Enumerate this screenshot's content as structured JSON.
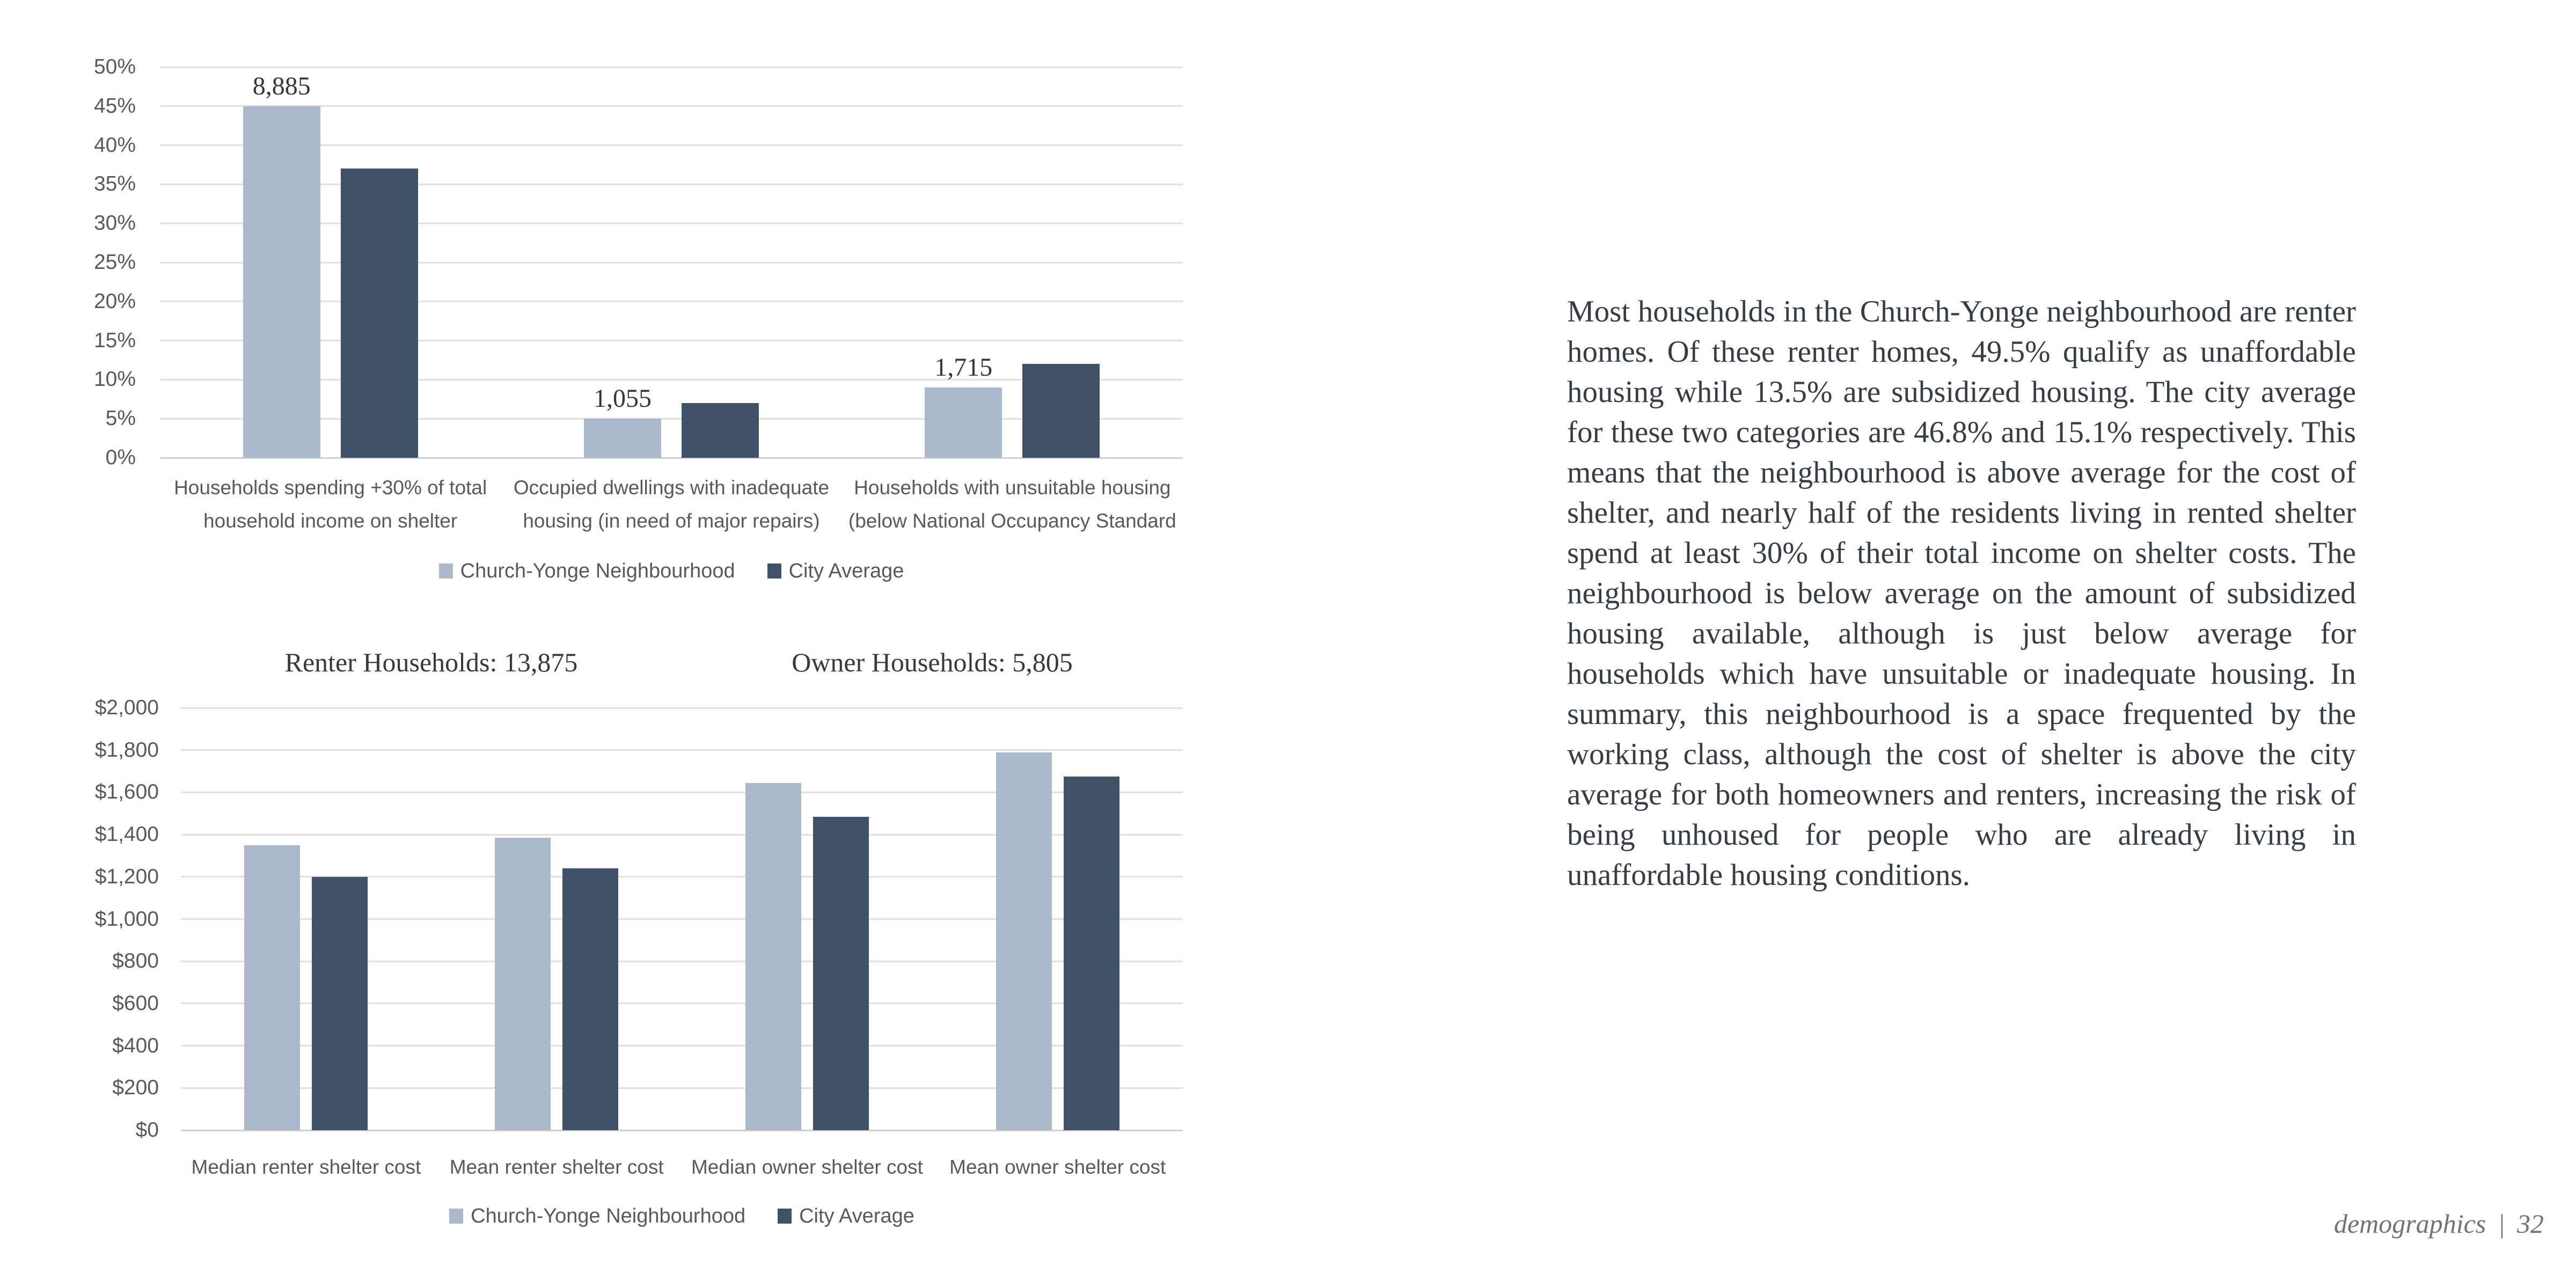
{
  "legend": {
    "neighbourhood": "Church-Yonge Neighbourhood",
    "city": "City Average"
  },
  "colors": {
    "neighbourhood": "#aab9cb",
    "city": "#3f5268",
    "grid": "#e0e0e0",
    "axis": "#d0d0d0",
    "sans_label": "#595959",
    "serif_label": "#363636"
  },
  "chart_data": [
    {
      "type": "bar",
      "title": "",
      "categories": [
        "Households spending +30% of total household income on shelter",
        "Occupied dwellings with inadequate housing (in need of major repairs)",
        "Households with unsuitable housing (below National Occupancy Standard"
      ],
      "categories_wrapped": [
        [
          "Households spending +30% of total",
          "household income on shelter"
        ],
        [
          "Occupied dwellings with inadequate",
          "housing (in need of major repairs)"
        ],
        [
          "Households with unsuitable housing",
          "(below National Occupancy Standard"
        ]
      ],
      "series": [
        {
          "name": "Church-Yonge Neighbourhood",
          "values": [
            45,
            5,
            9
          ]
        },
        {
          "name": "City Average",
          "values": [
            37,
            7,
            12
          ]
        }
      ],
      "bar_value_labels": [
        "8,885",
        "1,055",
        "1,715"
      ],
      "ylim": [
        0,
        50
      ],
      "yticks": [
        "0%",
        "5%",
        "10%",
        "15%",
        "20%",
        "25%",
        "30%",
        "35%",
        "40%",
        "45%",
        "50%"
      ],
      "grid": true,
      "legend_position": "bottom"
    },
    {
      "type": "bar",
      "titles": [
        "Renter Households: 13,875",
        "Owner Households: 5,805"
      ],
      "categories": [
        "Median renter shelter cost",
        "Mean renter shelter cost",
        "Median owner shelter cost",
        "Mean owner shelter cost"
      ],
      "series": [
        {
          "name": "Church-Yonge Neighbourhood",
          "values": [
            1350,
            1385,
            1645,
            1790
          ]
        },
        {
          "name": "City Average",
          "values": [
            1200,
            1240,
            1485,
            1675
          ]
        }
      ],
      "ylim": [
        0,
        2000
      ],
      "yticks": [
        "$0",
        "$200",
        "$400",
        "$600",
        "$800",
        "$1,000",
        "$1,200",
        "$1,400",
        "$1,600",
        "$1,800",
        "$2,000"
      ],
      "grid": true,
      "legend_position": "bottom"
    }
  ],
  "article": {
    "text": "Most households in the Church-Yonge neighbourhood are renter homes. Of these renter homes, 49.5% qualify as unaffordable housing while 13.5% are subsidized housing. The city average for these two categories are 46.8% and 15.1% respectively. This means that the neighbourhood is above average for the cost of shelter, and nearly half of the residents living in rented shelter spend at least 30% of their total income on shelter costs. The neighbourhood is below average on the amount of subsidized housing available, although is just below average for households which have unsuitable or inadequate housing. In summary, this neighbourhood is a space frequented by the working class, although the cost of shelter is above the city average for both homeowners and renters, increasing the risk of being unhoused for people who are already living in unaffordable housing conditions."
  },
  "footer": {
    "section": "demographics",
    "separator": "|",
    "page_number": "32"
  }
}
